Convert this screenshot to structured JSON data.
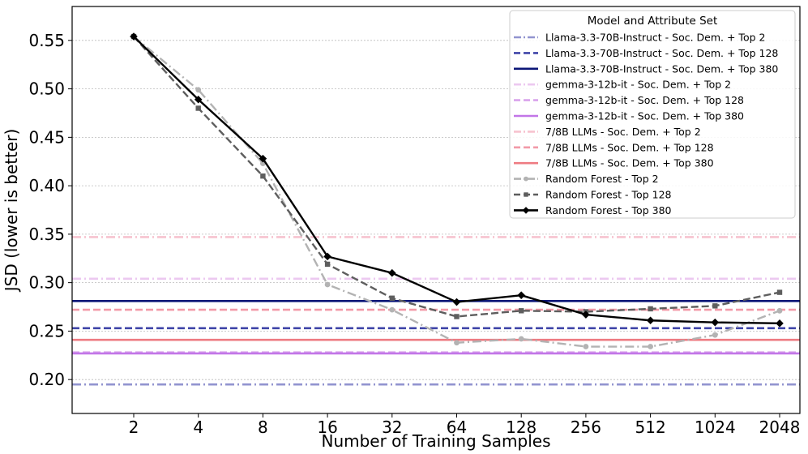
{
  "chart_data": {
    "type": "line",
    "title": "",
    "xlabel": "Number of Training Samples",
    "ylabel": "JSD (lower is better)",
    "categories": [
      "2",
      "4",
      "8",
      "16",
      "32",
      "64",
      "128",
      "256",
      "512",
      "1024",
      "2048"
    ],
    "ylim": [
      0.165,
      0.585
    ],
    "yticks": [
      "0.20",
      "0.25",
      "0.30",
      "0.35",
      "0.40",
      "0.45",
      "0.50",
      "0.55"
    ],
    "ytick_values": [
      0.2,
      0.25,
      0.3,
      0.35,
      0.4,
      0.45,
      0.5,
      0.55
    ],
    "grid": "horizontal",
    "legend_title": "Model and Attribute Set",
    "legend_position": "top-right",
    "reference_lines": [
      {
        "name": "Llama-3.3-70B-Instruct - Soc. Dem. + Top 2",
        "value": 0.195,
        "color": "#9294cf",
        "dash": "dashdot"
      },
      {
        "name": "Llama-3.3-70B-Instruct - Soc. Dem. + Top 128",
        "value": 0.253,
        "color": "#3f45a8",
        "dash": "dashed"
      },
      {
        "name": "Llama-3.3-70B-Instruct - Soc. Dem. + Top 380",
        "value": 0.281,
        "color": "#0b1677",
        "dash": "solid"
      },
      {
        "name": "gemma-3-12b-it - Soc. Dem. + Top 2",
        "value": 0.304,
        "color": "#ecc8f0",
        "dash": "dashdot"
      },
      {
        "name": "gemma-3-12b-it - Soc. Dem. + Top 128",
        "value": 0.228,
        "color": "#d9a3ec",
        "dash": "dashed"
      },
      {
        "name": "gemma-3-12b-it - Soc. Dem. + Top 380",
        "value": 0.227,
        "color": "#c276e8",
        "dash": "solid"
      },
      {
        "name": "7/8B LLMs - Soc. Dem. + Top 2",
        "value": 0.347,
        "color": "#f7c3cf",
        "dash": "dashdot"
      },
      {
        "name": "7/8B LLMs - Soc. Dem. + Top 128",
        "value": 0.272,
        "color": "#f29aa8",
        "dash": "dashed"
      },
      {
        "name": "7/8B LLMs - Soc. Dem. + Top 380",
        "value": 0.241,
        "color": "#ee7b82",
        "dash": "solid"
      }
    ],
    "series": [
      {
        "name": "Random Forest - Top 2",
        "color": "#b3b3b3",
        "dash": "dashdot",
        "marker": "circle",
        "values": [
          0.554,
          0.499,
          0.423,
          0.298,
          0.272,
          0.238,
          0.242,
          0.234,
          0.234,
          0.246,
          0.271
        ]
      },
      {
        "name": "Random Forest - Top 128",
        "color": "#5e5e5e",
        "dash": "dashed",
        "marker": "square",
        "values": [
          0.554,
          0.48,
          0.41,
          0.319,
          0.284,
          0.265,
          0.271,
          0.27,
          0.273,
          0.276,
          0.29
        ]
      },
      {
        "name": "Random Forest - Top 380",
        "color": "#000000",
        "dash": "solid",
        "marker": "diamond",
        "values": [
          0.554,
          0.489,
          0.428,
          0.327,
          0.31,
          0.28,
          0.287,
          0.267,
          0.261,
          0.259,
          0.258
        ]
      }
    ],
    "legend_order": [
      "Llama-3.3-70B-Instruct - Soc. Dem. + Top 2",
      "Llama-3.3-70B-Instruct - Soc. Dem. + Top 128",
      "Llama-3.3-70B-Instruct - Soc. Dem. + Top 380",
      "gemma-3-12b-it - Soc. Dem. + Top 2",
      "gemma-3-12b-it - Soc. Dem. + Top 128",
      "gemma-3-12b-it - Soc. Dem. + Top 380",
      "7/8B LLMs - Soc. Dem. + Top 2",
      "7/8B LLMs - Soc. Dem. + Top 128",
      "7/8B LLMs - Soc. Dem. + Top 380",
      "Random Forest - Top 2",
      "Random Forest - Top 128",
      "Random Forest - Top 380"
    ]
  }
}
